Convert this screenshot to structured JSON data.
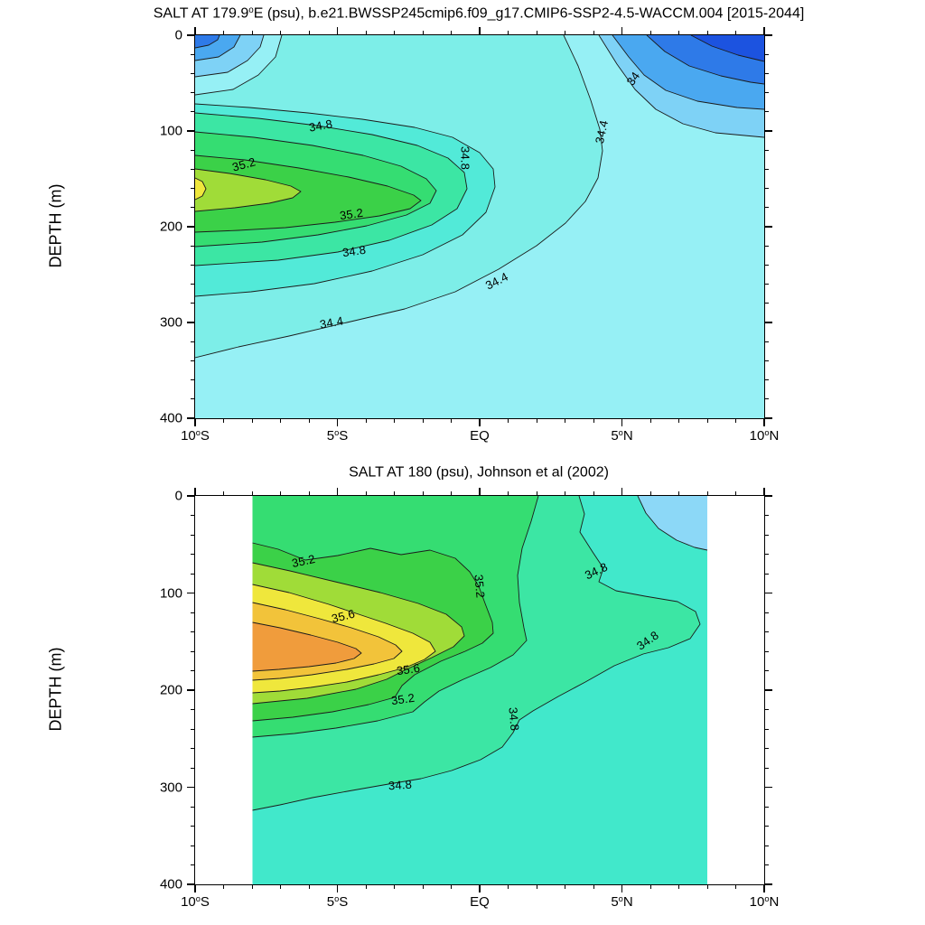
{
  "page": {
    "background": "#ffffff"
  },
  "chart_data": [
    {
      "type": "contour",
      "id": "model-section",
      "title": {
        "pre": "SALT AT 179.9",
        "sup": "o",
        "post": "E (psu), b.e21.BWSSP245cmip6.f09_g17.CMIP6-SSP2-4.5-WACCM.004 [2015-2044]"
      },
      "ylabel": "DEPTH (m)",
      "units": "psu",
      "x_axis": {
        "ticks": [
          {
            "pre": "10",
            "sup": "o",
            "post": "S"
          },
          {
            "pre": "5",
            "sup": "o",
            "post": "S"
          },
          {
            "pre": "EQ",
            "sup": "",
            "post": ""
          },
          {
            "pre": "5",
            "sup": "o",
            "post": "N"
          },
          {
            "pre": "10",
            "sup": "o",
            "post": "N"
          }
        ],
        "range_deg": [
          -10,
          10
        ],
        "major_step_deg": 5,
        "minor_step_deg": 1
      },
      "y_axis": {
        "tick_labels": [
          "0",
          "100",
          "200",
          "300",
          "400"
        ],
        "range_m": [
          0,
          400
        ],
        "major_step_m": 100,
        "minor_step_m": 20
      },
      "contour_interval_psu": 0.2,
      "labeled_contours_psu": [
        34,
        34.4,
        34.8,
        35.2
      ],
      "data_lat_extent_deg": [
        -10,
        10
      ],
      "contour_labels": [
        {
          "text": "34.8",
          "lat": -5.6,
          "depth_m": 94,
          "rot_deg": -10
        },
        {
          "text": "35.2",
          "lat": -8.3,
          "depth_m": 135,
          "rot_deg": -15
        },
        {
          "text": "35.2",
          "lat": -4.5,
          "depth_m": 187,
          "rot_deg": -8
        },
        {
          "text": "34.8",
          "lat": -0.5,
          "depth_m": 128,
          "rot_deg": 90
        },
        {
          "text": "34.8",
          "lat": -4.4,
          "depth_m": 225,
          "rot_deg": -8
        },
        {
          "text": "34.4",
          "lat": 0.6,
          "depth_m": 257,
          "rot_deg": -27
        },
        {
          "text": "34.4",
          "lat": -5.2,
          "depth_m": 300,
          "rot_deg": -10
        },
        {
          "text": "34.4",
          "lat": 4.3,
          "depth_m": 101,
          "rot_deg": -78
        },
        {
          "text": "34",
          "lat": 5.4,
          "depth_m": 45,
          "rot_deg": -55
        }
      ],
      "fill_bands": [
        {
          "psu": "<33.6",
          "color": "#1c53e0"
        },
        {
          "psu": "33.6-33.8",
          "color": "#2e7ae8"
        },
        {
          "psu": "33.8-34.0",
          "color": "#4aa8f0"
        },
        {
          "psu": "34.0-34.2",
          "color": "#7ed2f6"
        },
        {
          "psu": "34.2-34.4",
          "color": "#96f0f5"
        },
        {
          "psu": "34.4-34.6",
          "color": "#7deee8"
        },
        {
          "psu": "34.6-34.8",
          "color": "#52ead8"
        },
        {
          "psu": "34.8-35.0",
          "color": "#3ce6a4"
        },
        {
          "psu": "35.0-35.2",
          "color": "#35dd72"
        },
        {
          "psu": "35.2-35.4",
          "color": "#3bd148"
        },
        {
          "psu": "35.4-35.6",
          "color": "#a0dc38"
        },
        {
          "psu": ">35.6",
          "color": "#efe73c"
        }
      ],
      "key_features": [
        "subsurface salinity maximum >35.2 psu centered near 8S at 130-210 m",
        "fresh surface water <34 psu north of about 4N and at 10S surface corner",
        "34.4 isohaline deepens southwestward to ~340 m at 10S"
      ]
    },
    {
      "type": "contour",
      "id": "obs-section",
      "title": {
        "pre": "SALT AT 180 (psu), Johnson et al (2002)",
        "sup": "",
        "post": ""
      },
      "ylabel": "DEPTH (m)",
      "units": "psu",
      "x_axis": {
        "ticks": [
          {
            "pre": "10",
            "sup": "o",
            "post": "S"
          },
          {
            "pre": "5",
            "sup": "o",
            "post": "S"
          },
          {
            "pre": "EQ",
            "sup": "",
            "post": ""
          },
          {
            "pre": "5",
            "sup": "o",
            "post": "N"
          },
          {
            "pre": "10",
            "sup": "o",
            "post": "N"
          }
        ],
        "range_deg": [
          -10,
          10
        ],
        "major_step_deg": 5,
        "minor_step_deg": 1
      },
      "y_axis": {
        "tick_labels": [
          "0",
          "100",
          "200",
          "300",
          "400"
        ],
        "range_m": [
          0,
          400
        ],
        "major_step_m": 100,
        "minor_step_m": 20
      },
      "contour_interval_psu": 0.2,
      "labeled_contours_psu": [
        34.8,
        35.2,
        35.6
      ],
      "data_lat_extent_deg": [
        -8,
        8
      ],
      "contour_labels": [
        {
          "text": "35.2",
          "lat": -6.2,
          "depth_m": 67,
          "rot_deg": -12
        },
        {
          "text": "35.2",
          "lat": 0.0,
          "depth_m": 93,
          "rot_deg": 85
        },
        {
          "text": "35.6",
          "lat": -4.8,
          "depth_m": 124,
          "rot_deg": -14
        },
        {
          "text": "35.6",
          "lat": -2.5,
          "depth_m": 179,
          "rot_deg": -8
        },
        {
          "text": "35.2",
          "lat": -2.7,
          "depth_m": 209,
          "rot_deg": -8
        },
        {
          "text": "34.8",
          "lat": 4.1,
          "depth_m": 77,
          "rot_deg": -25
        },
        {
          "text": "34.8",
          "lat": 5.9,
          "depth_m": 149,
          "rot_deg": -35
        },
        {
          "text": "34.8",
          "lat": 1.2,
          "depth_m": 230,
          "rot_deg": 85
        },
        {
          "text": "34.8",
          "lat": -2.8,
          "depth_m": 298,
          "rot_deg": -4
        }
      ],
      "fill_bands": [
        {
          "psu": "<34.4",
          "color": "#8cd8f7"
        },
        {
          "psu": "34.4-34.8",
          "color": "#41e8cb"
        },
        {
          "psu": "34.8-35.0",
          "color": "#3ce6a4"
        },
        {
          "psu": "35.0-35.2",
          "color": "#35dd72"
        },
        {
          "psu": "35.2-35.4",
          "color": "#3bd148"
        },
        {
          "psu": "35.4-35.6",
          "color": "#a0dc38"
        },
        {
          "psu": "35.6-35.8",
          "color": "#efe73c"
        },
        {
          "psu": "35.8-36.0",
          "color": "#f2c33a"
        },
        {
          "psu": ">36.0",
          "color": "#f09c3c"
        }
      ],
      "key_features": [
        "subsurface salinity maximum >36.0 psu near 8S at 130-180 m",
        "salty tongue >34.8 psu extends northward to ~8N near 120-170 m",
        "observed data span only 8S-8N; white outside"
      ]
    }
  ]
}
